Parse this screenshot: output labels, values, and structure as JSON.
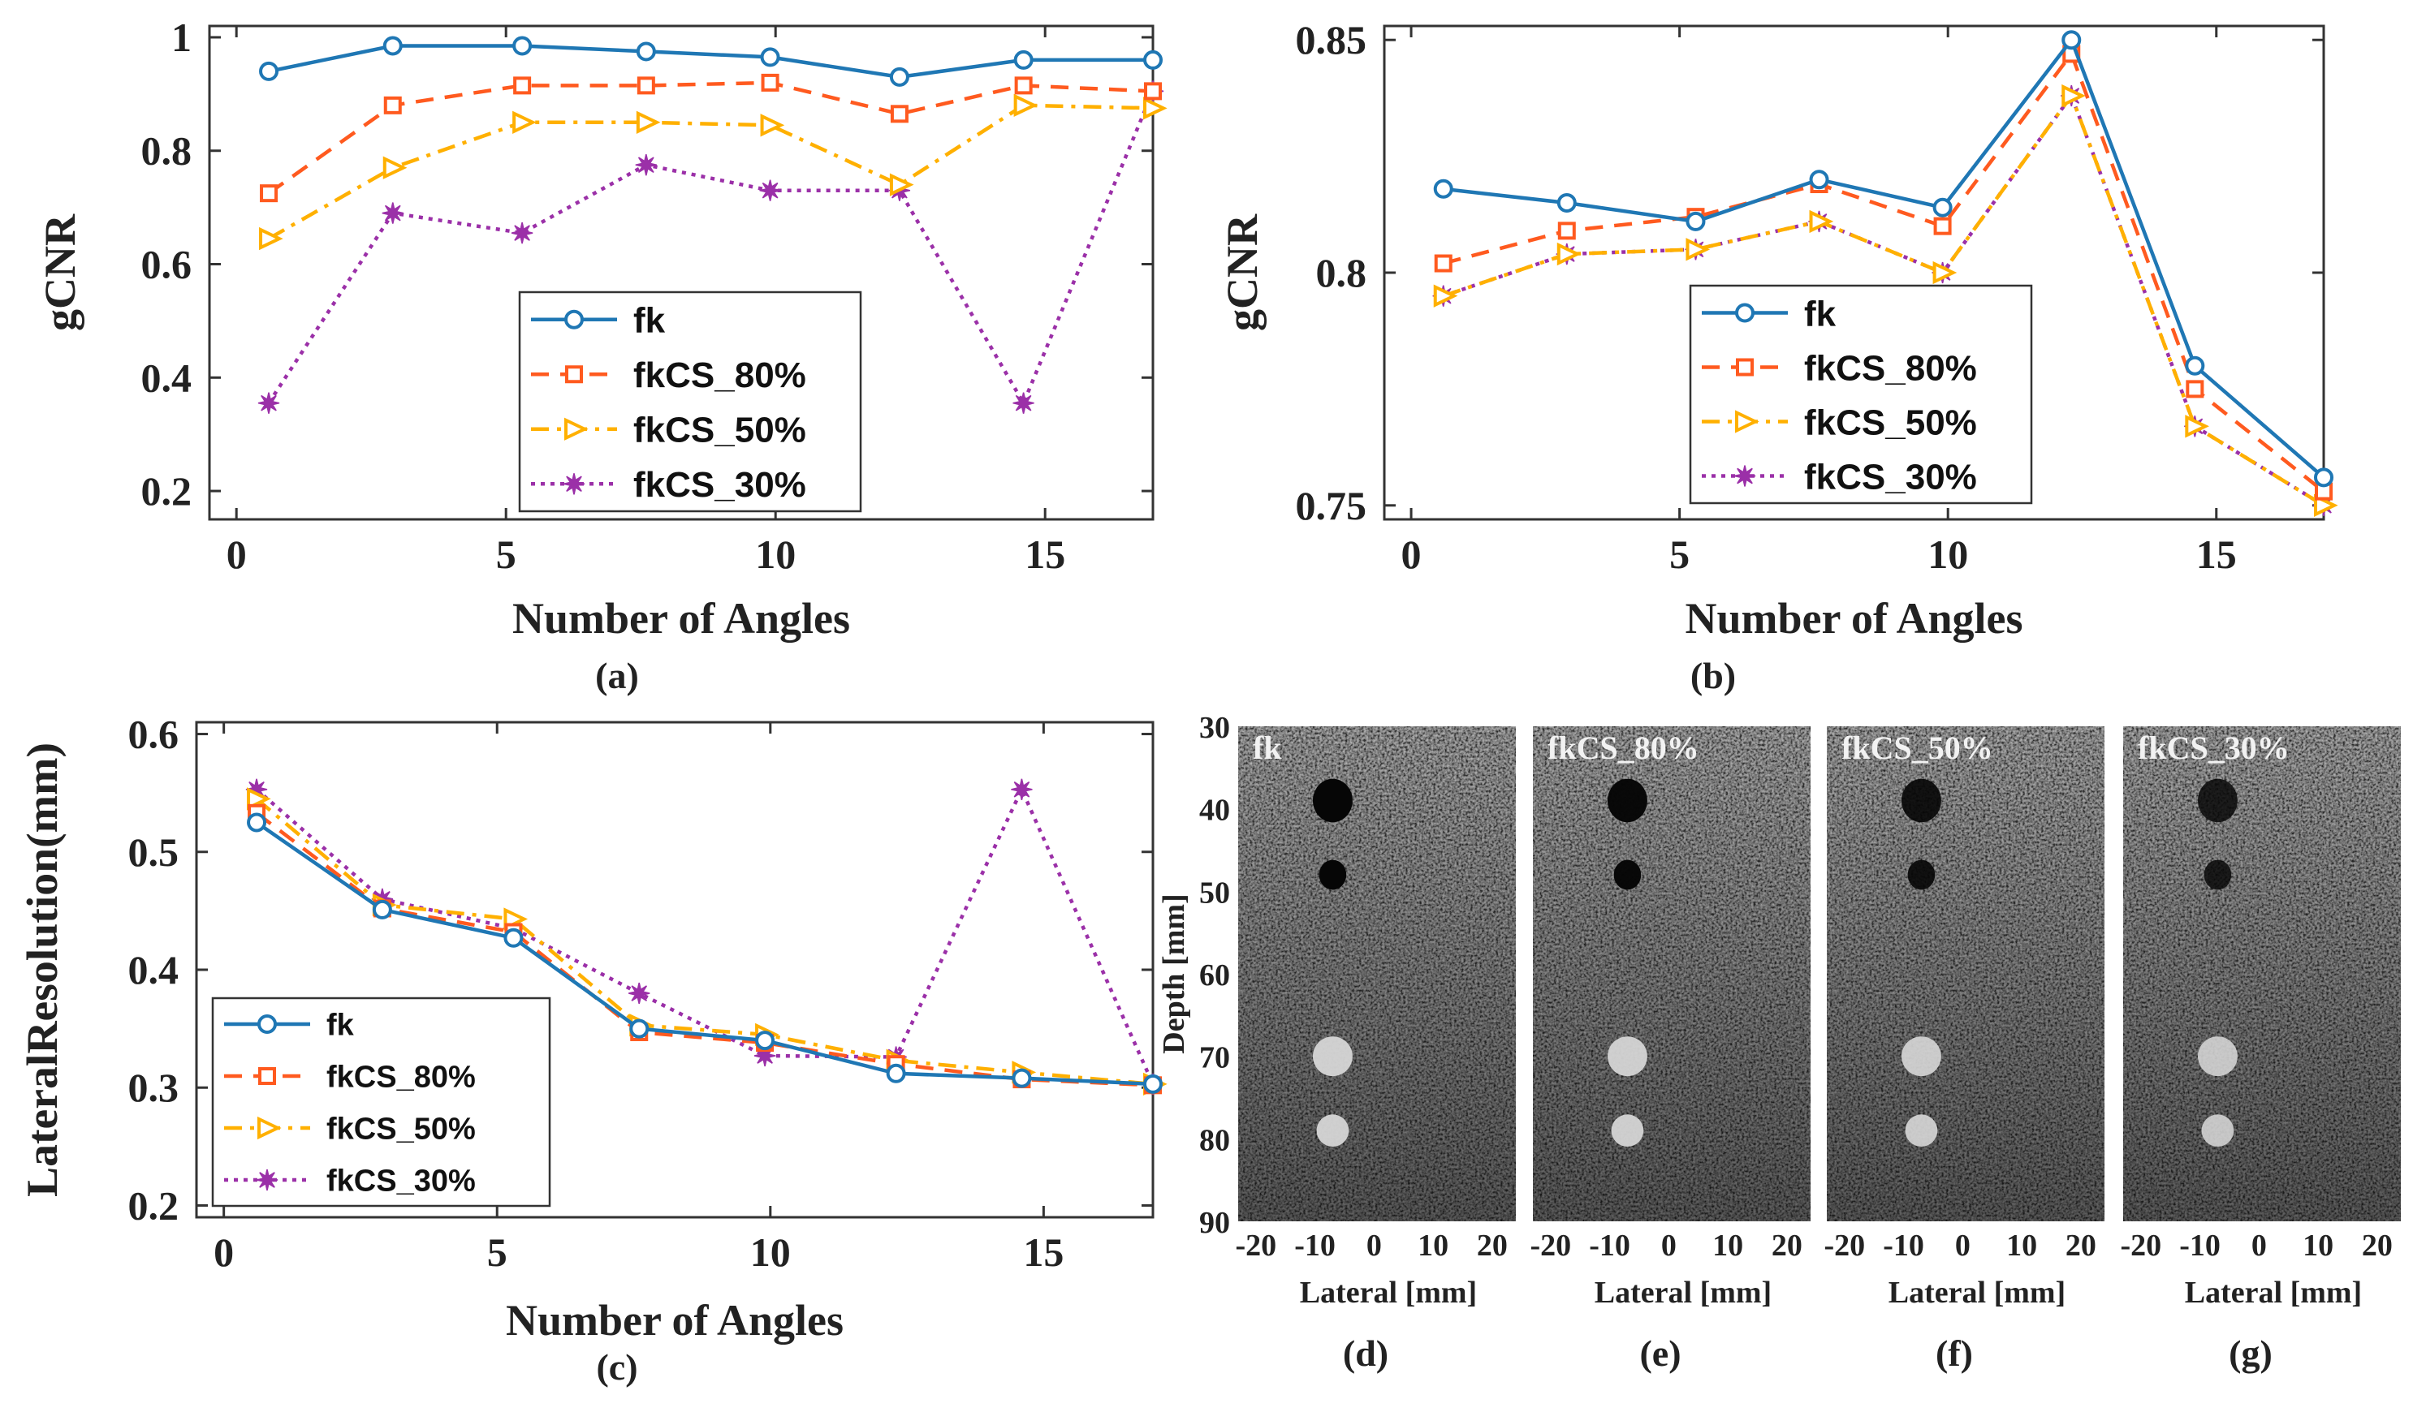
{
  "chart_data": [
    {
      "id": "a",
      "type": "line",
      "caption": "(a)",
      "xlabel": "Number of Angles",
      "ylabel": "gCNR",
      "xlim": [
        -0.5,
        17
      ],
      "ylim": [
        0.15,
        1.02
      ],
      "xticks": [
        0,
        5,
        10,
        15
      ],
      "xtick_labels": [
        "0",
        "5",
        "10",
        "15"
      ],
      "yticks": [
        0.2,
        0.4,
        0.6,
        0.8,
        1
      ],
      "ytick_labels": [
        "0.2",
        "0.4",
        "0.6",
        "0.8",
        "1"
      ],
      "x": [
        0.6,
        2.9,
        5.3,
        7.6,
        9.9,
        12.3,
        14.6,
        17
      ],
      "series": [
        {
          "name": "fk",
          "color": "#1f77b4",
          "dash": "",
          "marker": "circle",
          "values": [
            0.94,
            0.985,
            0.985,
            0.975,
            0.965,
            0.93,
            0.96,
            0.96
          ]
        },
        {
          "name": "fkCS_80%",
          "color": "#ff5a1f",
          "dash": "22,14",
          "marker": "square",
          "values": [
            0.725,
            0.88,
            0.915,
            0.915,
            0.92,
            0.865,
            0.915,
            0.905
          ]
        },
        {
          "name": "fkCS_50%",
          "color": "#ffb000",
          "dash": "22,10,5,10",
          "marker": "triangle",
          "values": [
            0.645,
            0.77,
            0.85,
            0.85,
            0.845,
            0.74,
            0.88,
            0.875
          ]
        },
        {
          "name": "fkCS_30%",
          "color": "#9b30a8",
          "dash": "5,7",
          "marker": "star",
          "values": [
            0.355,
            0.69,
            0.655,
            0.775,
            0.73,
            0.73,
            0.355,
            0.905
          ]
        }
      ],
      "legend": "lower-center"
    },
    {
      "id": "b",
      "type": "line",
      "caption": "(b)",
      "xlabel": "Number of Angles",
      "ylabel": "gCNR",
      "xlim": [
        -0.5,
        17
      ],
      "ylim": [
        0.747,
        0.853
      ],
      "xticks": [
        0,
        5,
        10,
        15
      ],
      "xtick_labels": [
        "0",
        "5",
        "10",
        "15"
      ],
      "yticks": [
        0.75,
        0.8,
        0.85
      ],
      "ytick_labels": [
        "0.75",
        "0.8",
        "0.85"
      ],
      "x": [
        0.6,
        2.9,
        5.3,
        7.6,
        9.9,
        12.3,
        14.6,
        17
      ],
      "series": [
        {
          "name": "fk",
          "color": "#1f77b4",
          "dash": "",
          "marker": "circle",
          "values": [
            0.818,
            0.815,
            0.811,
            0.82,
            0.814,
            0.85,
            0.78,
            0.756
          ]
        },
        {
          "name": "fkCS_80%",
          "color": "#ff5a1f",
          "dash": "22,14",
          "marker": "square",
          "values": [
            0.802,
            0.809,
            0.812,
            0.819,
            0.81,
            0.847,
            0.775,
            0.753
          ]
        },
        {
          "name": "fkCS_50%",
          "color": "#ffb000",
          "dash": "22,10,5,10",
          "marker": "triangle",
          "values": [
            0.795,
            0.804,
            0.805,
            0.811,
            0.8,
            0.838,
            0.767,
            0.75
          ]
        },
        {
          "name": "fkCS_30%",
          "color": "#9b30a8",
          "dash": "5,7",
          "marker": "star",
          "values": [
            0.795,
            0.804,
            0.805,
            0.811,
            0.8,
            0.838,
            0.767,
            0.75
          ]
        }
      ],
      "legend": "lower-right"
    },
    {
      "id": "c",
      "type": "line",
      "caption": "(c)",
      "xlabel": "Number of Angles",
      "ylabel": "LateralResolution(mm)",
      "xlim": [
        -0.5,
        17
      ],
      "ylim": [
        0.19,
        0.61
      ],
      "xticks": [
        0,
        5,
        10,
        15
      ],
      "xtick_labels": [
        "0",
        "5",
        "10",
        "15"
      ],
      "yticks": [
        0.2,
        0.3,
        0.4,
        0.5,
        0.6
      ],
      "ytick_labels": [
        "0.2",
        "0.3",
        "0.4",
        "0.5",
        "0.6"
      ],
      "x": [
        0.6,
        2.9,
        5.3,
        7.6,
        9.9,
        12.3,
        14.6,
        17
      ],
      "series": [
        {
          "name": "fk",
          "color": "#1f77b4",
          "dash": "",
          "marker": "circle",
          "values": [
            0.525,
            0.451,
            0.427,
            0.35,
            0.34,
            0.312,
            0.308,
            0.303
          ]
        },
        {
          "name": "fkCS_80%",
          "color": "#ff5a1f",
          "dash": "22,14",
          "marker": "square",
          "values": [
            0.533,
            0.452,
            0.432,
            0.347,
            0.338,
            0.32,
            0.307,
            0.302
          ]
        },
        {
          "name": "fkCS_50%",
          "color": "#ffb000",
          "dash": "22,10,5,10",
          "marker": "triangle",
          "values": [
            0.545,
            0.455,
            0.443,
            0.353,
            0.345,
            0.323,
            0.313,
            0.303
          ]
        },
        {
          "name": "fkCS_30%",
          "color": "#9b30a8",
          "dash": "5,7",
          "marker": "star",
          "values": [
            0.553,
            0.46,
            0.435,
            0.38,
            0.327,
            0.326,
            0.553,
            0.303
          ]
        }
      ],
      "legend": "lower-left"
    }
  ],
  "images": {
    "ylabel": "Depth [mm]",
    "xlabel": "Lateral [mm]",
    "yticks": [
      30,
      40,
      50,
      60,
      70,
      80,
      90
    ],
    "ytick_labels": [
      "30",
      "40",
      "50",
      "60",
      "70",
      "80",
      "90"
    ],
    "ylim": [
      30,
      90
    ],
    "xticks": [
      -20,
      -10,
      0,
      10,
      20
    ],
    "xtick_labels": [
      "-20",
      "-10",
      "0",
      "10",
      "20"
    ],
    "xlim": [
      -23,
      24
    ],
    "targets": [
      {
        "kind": "anechoic",
        "x": -7,
        "depth": 39,
        "r": 3.2
      },
      {
        "kind": "anechoic",
        "x": -7,
        "depth": 48,
        "r": 2.2
      },
      {
        "kind": "hyperechoic",
        "x": -7,
        "depth": 70,
        "r": 3.2
      },
      {
        "kind": "hyperechoic",
        "x": -7,
        "depth": 79,
        "r": 2.6
      }
    ],
    "panels": [
      {
        "title": "fk",
        "caption": "(d)",
        "contrast": 1.0
      },
      {
        "title": "fkCS_80%",
        "caption": "(e)",
        "contrast": 0.95
      },
      {
        "title": "fkCS_50%",
        "caption": "(f)",
        "contrast": 0.8
      },
      {
        "title": "fkCS_30%",
        "caption": "(g)",
        "contrast": 0.65
      }
    ]
  }
}
